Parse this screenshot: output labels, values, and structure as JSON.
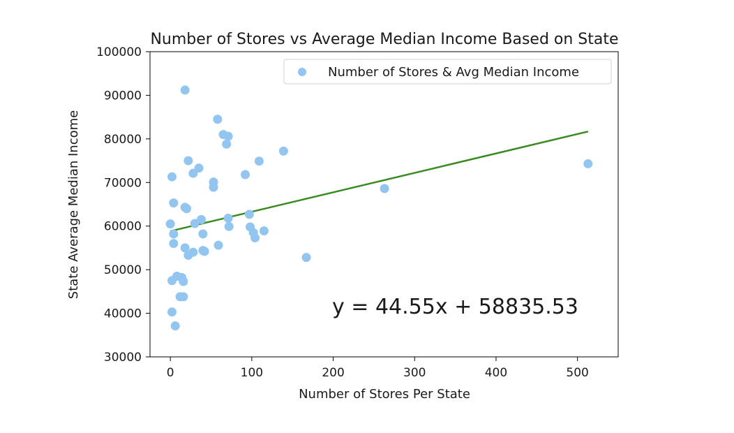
{
  "chart_data": {
    "type": "scatter",
    "title": "Number of Stores vs Average Median Income Based on State",
    "xlabel": "Number of Stores Per State",
    "ylabel": "State Average Median Income",
    "xlim": [
      -25,
      550
    ],
    "ylim": [
      30000,
      100000
    ],
    "xticks": [
      0,
      100,
      200,
      300,
      400,
      500
    ],
    "yticks": [
      30000,
      40000,
      50000,
      60000,
      70000,
      80000,
      90000,
      100000
    ],
    "legend": {
      "placement": "top-right",
      "entries": [
        "Number of Stores & Avg Median Income"
      ]
    },
    "grid": false,
    "series": [
      {
        "color": "#92c5f0",
        "points": [
          [
            18,
            91200
          ],
          [
            58,
            84500
          ],
          [
            65,
            81000
          ],
          [
            71,
            80600
          ],
          [
            69,
            78800
          ],
          [
            139,
            77200
          ],
          [
            22,
            75000
          ],
          [
            109,
            74900
          ],
          [
            35,
            73300
          ],
          [
            28,
            72100
          ],
          [
            2,
            71300
          ],
          [
            92,
            71800
          ],
          [
            53,
            70100
          ],
          [
            53,
            68900
          ],
          [
            263,
            68600
          ],
          [
            513,
            74300
          ],
          [
            4,
            65300
          ],
          [
            18,
            64300
          ],
          [
            20,
            64000
          ],
          [
            38,
            61500
          ],
          [
            71,
            61800
          ],
          [
            30,
            60600
          ],
          [
            0,
            60500
          ],
          [
            72,
            59900
          ],
          [
            97,
            62700
          ],
          [
            98,
            59800
          ],
          [
            115,
            58900
          ],
          [
            4,
            58200
          ],
          [
            40,
            58200
          ],
          [
            102,
            58500
          ],
          [
            104,
            57300
          ],
          [
            4,
            56000
          ],
          [
            59,
            55600
          ],
          [
            18,
            55000
          ],
          [
            40,
            54400
          ],
          [
            42,
            54200
          ],
          [
            28,
            54000
          ],
          [
            22,
            53300
          ],
          [
            167,
            52800
          ],
          [
            8,
            48500
          ],
          [
            14,
            48200
          ],
          [
            2,
            47500
          ],
          [
            16,
            47300
          ],
          [
            12,
            43800
          ],
          [
            16,
            43800
          ],
          [
            2,
            40300
          ],
          [
            6,
            37100
          ]
        ]
      }
    ],
    "regression": {
      "color": "#3a8a22",
      "slope": 44.55,
      "intercept": 58835.53,
      "x_range": [
        0,
        513
      ],
      "equation_label": "y = 44.55x + 58835.53"
    }
  }
}
